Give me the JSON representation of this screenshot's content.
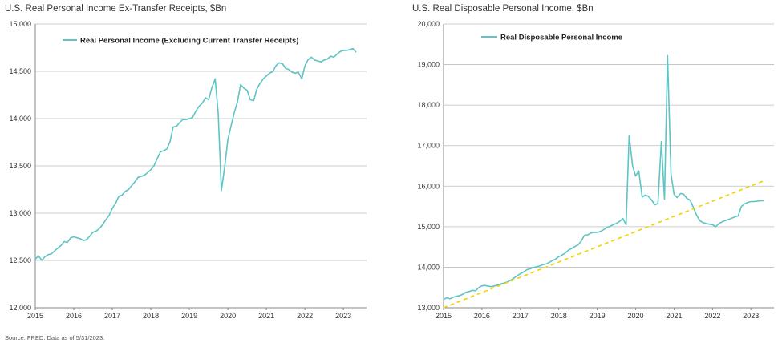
{
  "source_note": "Source: FRED. Data as of 5/31/2023.",
  "colors": {
    "series": "#5ec4c4",
    "trend": "#f2d200",
    "grid": "#bdbdbd",
    "axis": "#888888"
  },
  "chart_data": [
    {
      "type": "line",
      "title": "U.S. Real Personal Income Ex-Transfer Receipts, $Bn",
      "xlabel": "",
      "ylabel": "",
      "xlim": [
        2015,
        2023.6
      ],
      "ylim": [
        12000,
        15000
      ],
      "x_ticks": [
        "2015",
        "2016",
        "2017",
        "2018",
        "2019",
        "2020",
        "2021",
        "2022",
        "2023"
      ],
      "y_ticks": [
        "12,000",
        "12,500",
        "13,000",
        "13,500",
        "14,000",
        "14,500",
        "15,000"
      ],
      "y_tick_values": [
        12000,
        12500,
        13000,
        13500,
        14000,
        14500,
        15000
      ],
      "grid": "horizontal",
      "legend_position": "top-left",
      "series": [
        {
          "name": "Real Personal Income (Excluding Current Transfer Receipts)",
          "x": [
            2015.0,
            2015.08,
            2015.17,
            2015.25,
            2015.33,
            2015.42,
            2015.5,
            2015.58,
            2015.67,
            2015.75,
            2015.83,
            2015.92,
            2016.0,
            2016.08,
            2016.17,
            2016.25,
            2016.33,
            2016.42,
            2016.5,
            2016.58,
            2016.67,
            2016.75,
            2016.83,
            2016.92,
            2017.0,
            2017.08,
            2017.17,
            2017.25,
            2017.33,
            2017.42,
            2017.5,
            2017.58,
            2017.67,
            2017.75,
            2017.83,
            2017.92,
            2018.0,
            2018.08,
            2018.17,
            2018.25,
            2018.33,
            2018.42,
            2018.5,
            2018.58,
            2018.67,
            2018.75,
            2018.83,
            2018.92,
            2019.0,
            2019.08,
            2019.17,
            2019.25,
            2019.33,
            2019.42,
            2019.5,
            2019.58,
            2019.67,
            2019.75,
            2019.83,
            2019.92,
            2020.0,
            2020.08,
            2020.17,
            2020.25,
            2020.33,
            2020.42,
            2020.5,
            2020.58,
            2020.67,
            2020.75,
            2020.83,
            2020.92,
            2021.0,
            2021.08,
            2021.17,
            2021.25,
            2021.33,
            2021.42,
            2021.5,
            2021.58,
            2021.67,
            2021.75,
            2021.83,
            2021.92,
            2022.0,
            2022.08,
            2022.17,
            2022.25,
            2022.33,
            2022.42,
            2022.5,
            2022.58,
            2022.67,
            2022.75,
            2022.83,
            2022.92,
            2023.0,
            2023.08,
            2023.17,
            2023.25,
            2023.33
          ],
          "values": [
            12510,
            12550,
            12500,
            12540,
            12560,
            12570,
            12600,
            12630,
            12660,
            12700,
            12690,
            12740,
            12750,
            12740,
            12730,
            12710,
            12720,
            12760,
            12800,
            12810,
            12840,
            12880,
            12930,
            12980,
            13050,
            13100,
            13180,
            13190,
            13230,
            13250,
            13290,
            13330,
            13380,
            13390,
            13400,
            13430,
            13460,
            13500,
            13580,
            13650,
            13660,
            13680,
            13760,
            13910,
            13920,
            13960,
            13990,
            13990,
            14000,
            14010,
            14080,
            14130,
            14160,
            14220,
            14200,
            14320,
            14420,
            14050,
            13240,
            13500,
            13780,
            13920,
            14070,
            14180,
            14360,
            14320,
            14300,
            14200,
            14190,
            14310,
            14370,
            14420,
            14450,
            14480,
            14500,
            14560,
            14590,
            14580,
            14530,
            14520,
            14490,
            14480,
            14490,
            14420,
            14560,
            14620,
            14650,
            14620,
            14610,
            14600,
            14620,
            14630,
            14660,
            14650,
            14680,
            14710,
            14720,
            14720,
            14730,
            14740,
            14700
          ]
        }
      ]
    },
    {
      "type": "line",
      "title": "U.S. Real Disposable Personal Income, $Bn",
      "xlabel": "",
      "ylabel": "",
      "xlim": [
        2015,
        2023.6
      ],
      "ylim": [
        13000,
        20000
      ],
      "x_ticks": [
        "2015",
        "2016",
        "2017",
        "2018",
        "2019",
        "2020",
        "2021",
        "2022",
        "2023"
      ],
      "y_ticks": [
        "13,000",
        "14,000",
        "15,000",
        "16,000",
        "17,000",
        "18,000",
        "19,000",
        "20,000"
      ],
      "y_tick_values": [
        13000,
        14000,
        15000,
        16000,
        17000,
        18000,
        19000,
        20000
      ],
      "grid": "horizontal",
      "legend_position": "top-left",
      "series": [
        {
          "name": "Real Disposable Personal Income",
          "x": [
            2015.0,
            2015.08,
            2015.17,
            2015.25,
            2015.33,
            2015.42,
            2015.5,
            2015.58,
            2015.67,
            2015.75,
            2015.83,
            2015.92,
            2016.0,
            2016.08,
            2016.17,
            2016.25,
            2016.33,
            2016.42,
            2016.5,
            2016.58,
            2016.67,
            2016.75,
            2016.83,
            2016.92,
            2017.0,
            2017.08,
            2017.17,
            2017.25,
            2017.33,
            2017.42,
            2017.5,
            2017.58,
            2017.67,
            2017.75,
            2017.83,
            2017.92,
            2018.0,
            2018.08,
            2018.17,
            2018.25,
            2018.33,
            2018.42,
            2018.5,
            2018.58,
            2018.67,
            2018.75,
            2018.83,
            2018.92,
            2019.0,
            2019.08,
            2019.17,
            2019.25,
            2019.33,
            2019.42,
            2019.5,
            2019.58,
            2019.67,
            2019.75,
            2019.83,
            2019.92,
            2020.0,
            2020.08,
            2020.17,
            2020.25,
            2020.33,
            2020.42,
            2020.5,
            2020.58,
            2020.67,
            2020.75,
            2020.83,
            2020.92,
            2021.0,
            2021.08,
            2021.17,
            2021.25,
            2021.33,
            2021.42,
            2021.5,
            2021.58,
            2021.67,
            2021.75,
            2021.83,
            2021.92,
            2022.0,
            2022.08,
            2022.17,
            2022.25,
            2022.33,
            2022.42,
            2022.5,
            2022.58,
            2022.67,
            2022.75,
            2022.83,
            2022.92,
            2023.0,
            2023.08,
            2023.17,
            2023.25,
            2023.33
          ],
          "values": [
            13200,
            13250,
            13220,
            13260,
            13280,
            13300,
            13330,
            13380,
            13400,
            13430,
            13420,
            13500,
            13540,
            13550,
            13530,
            13520,
            13540,
            13560,
            13590,
            13610,
            13640,
            13680,
            13730,
            13790,
            13840,
            13880,
            13940,
            13960,
            13990,
            14010,
            14030,
            14060,
            14080,
            14120,
            14160,
            14200,
            14260,
            14300,
            14350,
            14420,
            14460,
            14510,
            14550,
            14640,
            14790,
            14800,
            14840,
            14860,
            14860,
            14880,
            14930,
            14980,
            15010,
            15050,
            15080,
            15130,
            15200,
            15050,
            17250,
            16500,
            16250,
            16380,
            15730,
            15780,
            15750,
            15650,
            15540,
            15570,
            17100,
            15680,
            19220,
            16300,
            15800,
            15720,
            15820,
            15800,
            15700,
            15650,
            15480,
            15300,
            15150,
            15100,
            15080,
            15060,
            15050,
            15000,
            15080,
            15120,
            15150,
            15180,
            15210,
            15240,
            15270,
            15500,
            15560,
            15600,
            15620,
            15620,
            15630,
            15640,
            15640
          ]
        },
        {
          "type": "trend",
          "x": [
            2015.0,
            2023.33
          ],
          "values": [
            13000,
            16130
          ]
        }
      ]
    }
  ]
}
